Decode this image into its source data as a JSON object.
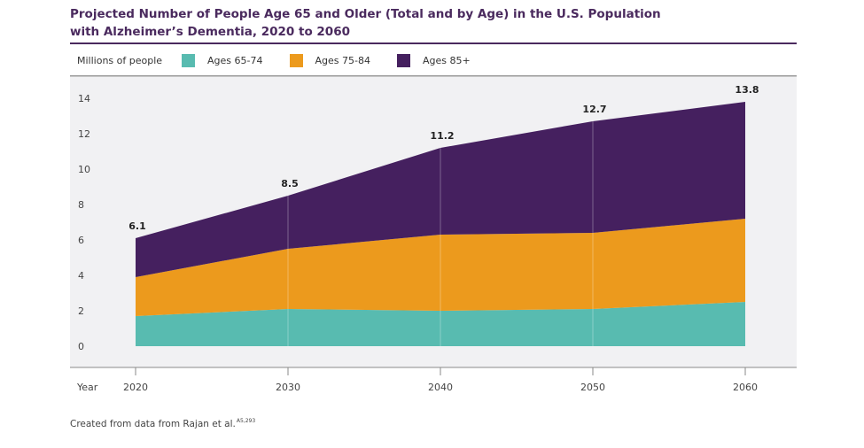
{
  "chart_data": {
    "type": "area",
    "stacked": true,
    "title": "Projected Number of People Age 65 and Older (Total and by Age) in the U.S. Population with Alzheimer’s Dementia, 2020 to 2060",
    "title_lines": [
      "Projected Number of People Age 65 and Older (Total and by Age) in the U.S. Population",
      "with Alzheimer’s Dementia, 2020 to 2060"
    ],
    "ylabel": "Millions of people",
    "xlabel": "Year",
    "x": [
      2020,
      2030,
      2040,
      2050,
      2060
    ],
    "x_tick_labels": [
      "2020",
      "2030",
      "2040",
      "2050",
      "2060"
    ],
    "y_ticks": [
      0,
      2,
      4,
      6,
      8,
      10,
      12,
      14
    ],
    "ylim": [
      0,
      14.8
    ],
    "grid": false,
    "legend_position": "top-left",
    "series": [
      {
        "name": "Ages 65-74",
        "color": "#58bbb0",
        "values": [
          1.7,
          2.1,
          2.0,
          2.1,
          2.5
        ]
      },
      {
        "name": "Ages 75-84",
        "color": "#ec9a1d",
        "values": [
          2.2,
          3.4,
          4.3,
          4.3,
          4.7
        ]
      },
      {
        "name": "Ages 85+",
        "color": "#45205f",
        "values": [
          2.2,
          3.0,
          4.9,
          6.3,
          6.6
        ]
      }
    ],
    "totals": [
      6.1,
      8.5,
      11.2,
      12.7,
      13.8
    ],
    "total_labels": [
      "6.1",
      "8.5",
      "11.2",
      "12.7",
      "13.8"
    ]
  },
  "legend": {
    "unit_label": "Millions of people",
    "items": [
      {
        "label": "Ages 65-74",
        "color": "#58bbb0"
      },
      {
        "label": "Ages 75-84",
        "color": "#ec9a1d"
      },
      {
        "label": "Ages 85+",
        "color": "#45205f"
      }
    ]
  },
  "footnote": {
    "text": "Created from data from Rajan et al.",
    "superscript": "A5,293"
  },
  "colors": {
    "title": "#4a2a5e",
    "plot_background": "#f1f1f3"
  }
}
